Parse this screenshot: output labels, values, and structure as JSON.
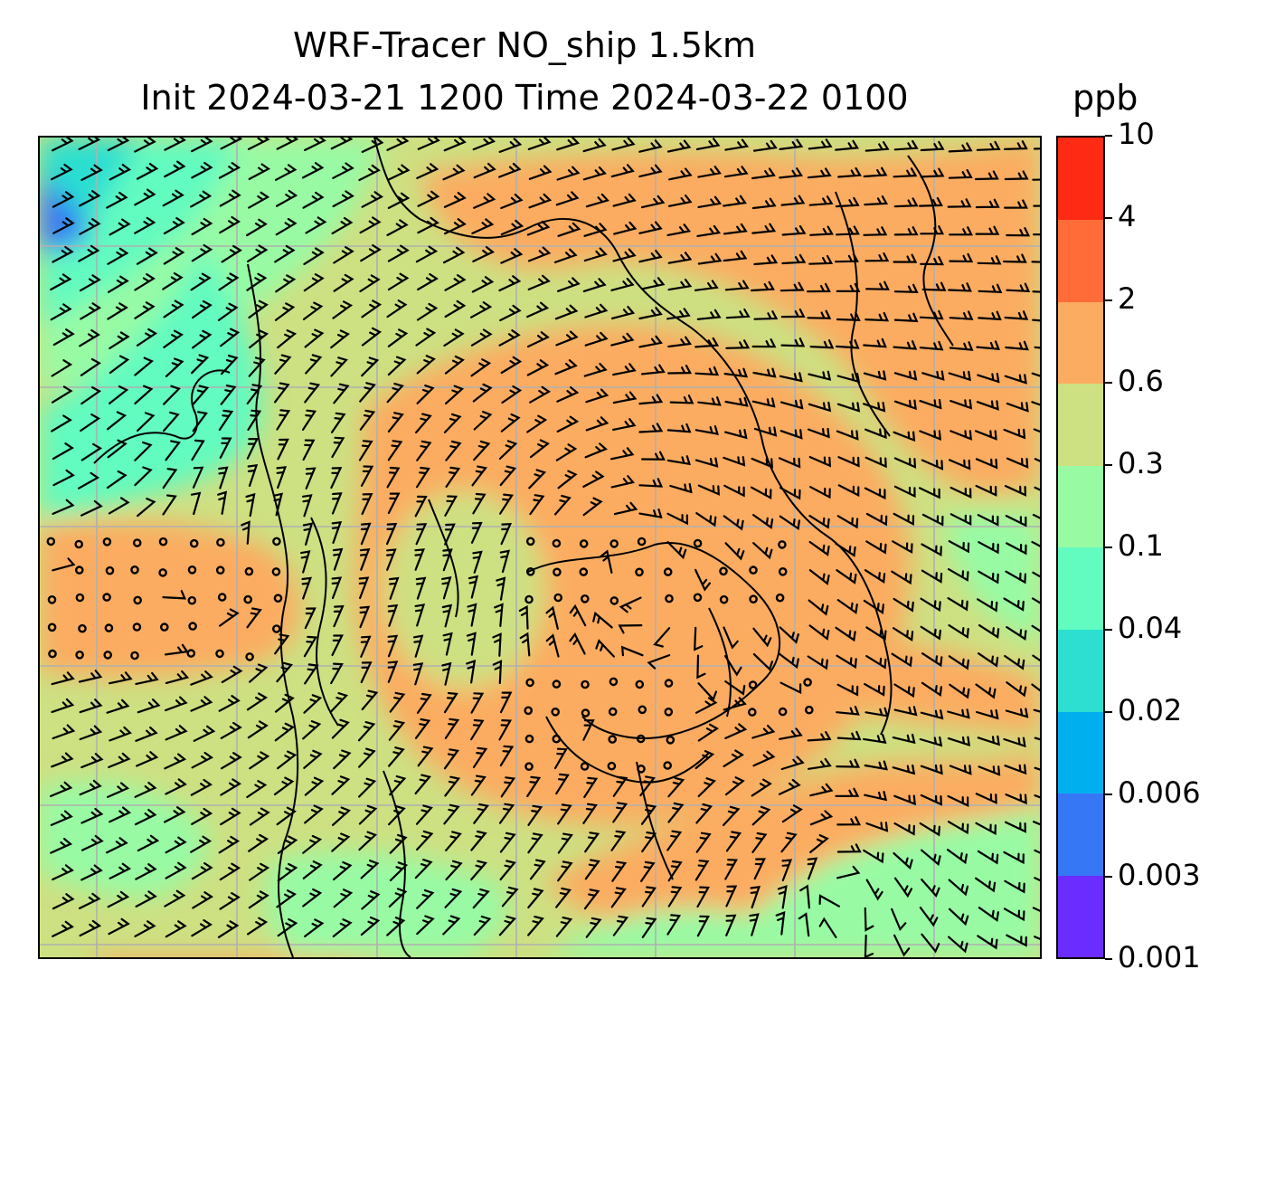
{
  "title": {
    "line1": "WRF-Tracer NO_ship 1.5km",
    "line2": "Init 2024-03-21 1200 Time 2024-03-22 0100",
    "unit": "ppb"
  },
  "colorbar": {
    "ticks": [
      "0.001",
      "0.003",
      "0.006",
      "0.02",
      "0.04",
      "0.1",
      "0.3",
      "0.6",
      "2",
      "4",
      "10"
    ],
    "colors": [
      "#6a2cff",
      "#3677f6",
      "#00b0ee",
      "#2cdfd0",
      "#62fbc0",
      "#98fba4",
      "#cde082",
      "#fcac60",
      "#ff6c38",
      "#ff2a14"
    ]
  },
  "map": {
    "gridlines": "on",
    "gridline_color": "#b0b0b0",
    "coastline_color": "#000000",
    "overlay": "wind barbs",
    "calm_marker": "open circle"
  }
}
